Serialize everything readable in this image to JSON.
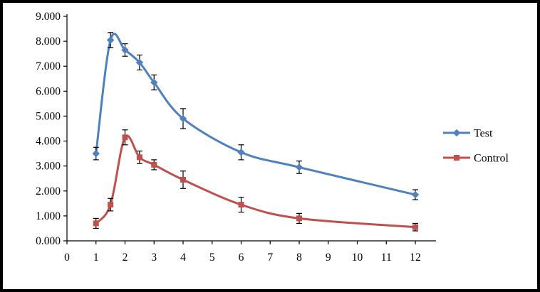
{
  "chart_data": {
    "type": "line",
    "title": "",
    "xlabel": "",
    "ylabel": "",
    "x": [
      1,
      1.5,
      2,
      2.5,
      3,
      4,
      6,
      8,
      12
    ],
    "series": [
      {
        "name": "Test",
        "color": "#4F81BD",
        "marker": "diamond",
        "values": [
          3.5,
          8.05,
          7.65,
          7.15,
          6.35,
          4.9,
          3.55,
          2.95,
          1.85
        ],
        "errors": [
          0.25,
          0.3,
          0.25,
          0.3,
          0.3,
          0.4,
          0.3,
          0.25,
          0.2
        ]
      },
      {
        "name": "Control",
        "color": "#C0504D",
        "marker": "square",
        "values": [
          0.7,
          1.45,
          4.15,
          3.35,
          3.05,
          2.45,
          1.45,
          0.9,
          0.55
        ],
        "errors": [
          0.2,
          0.25,
          0.3,
          0.25,
          0.2,
          0.35,
          0.3,
          0.2,
          0.15
        ]
      }
    ],
    "x_ticks": [
      0,
      1,
      2,
      3,
      4,
      5,
      6,
      7,
      8,
      9,
      10,
      11,
      12
    ],
    "y_ticks": [
      0,
      1,
      2,
      3,
      4,
      5,
      6,
      7,
      8,
      9
    ],
    "y_tick_labels": [
      "0.000",
      "1.000",
      "2.000",
      "3.000",
      "4.000",
      "5.000",
      "6.000",
      "7.000",
      "8.000",
      "9.000"
    ],
    "xlim": [
      0,
      12
    ],
    "ylim": [
      0,
      9
    ],
    "grid": false,
    "legend_position": "right",
    "legend_items": [
      "Test",
      "Control"
    ],
    "error_bar_color": "#000000",
    "axis_color": "#000000",
    "background_color": "#ffffff",
    "border_color": "#000000"
  }
}
